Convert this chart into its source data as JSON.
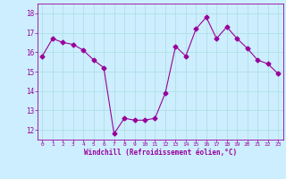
{
  "x": [
    0,
    1,
    2,
    3,
    4,
    5,
    6,
    7,
    8,
    9,
    10,
    11,
    12,
    13,
    14,
    15,
    16,
    17,
    18,
    19,
    20,
    21,
    22,
    23
  ],
  "y": [
    15.8,
    16.7,
    16.5,
    16.4,
    16.1,
    15.6,
    15.2,
    11.8,
    12.6,
    12.5,
    12.5,
    12.6,
    13.9,
    16.3,
    15.8,
    17.2,
    17.8,
    16.7,
    17.3,
    16.7,
    16.2,
    15.6,
    15.4,
    14.9
  ],
  "line_color": "#990099",
  "marker": "D",
  "markersize": 2.5,
  "linewidth": 0.8,
  "bg_color": "#cceeff",
  "grid_color": "#aadddd",
  "xlabel": "Windchill (Refroidissement éolien,°C)",
  "xlabel_color": "#990099",
  "tick_color": "#990099",
  "xlim": [
    -0.5,
    23.5
  ],
  "ylim": [
    11.5,
    18.5
  ],
  "yticks": [
    12,
    13,
    14,
    15,
    16,
    17,
    18
  ],
  "xticks": [
    0,
    1,
    2,
    3,
    4,
    5,
    6,
    7,
    8,
    9,
    10,
    11,
    12,
    13,
    14,
    15,
    16,
    17,
    18,
    19,
    20,
    21,
    22,
    23
  ]
}
